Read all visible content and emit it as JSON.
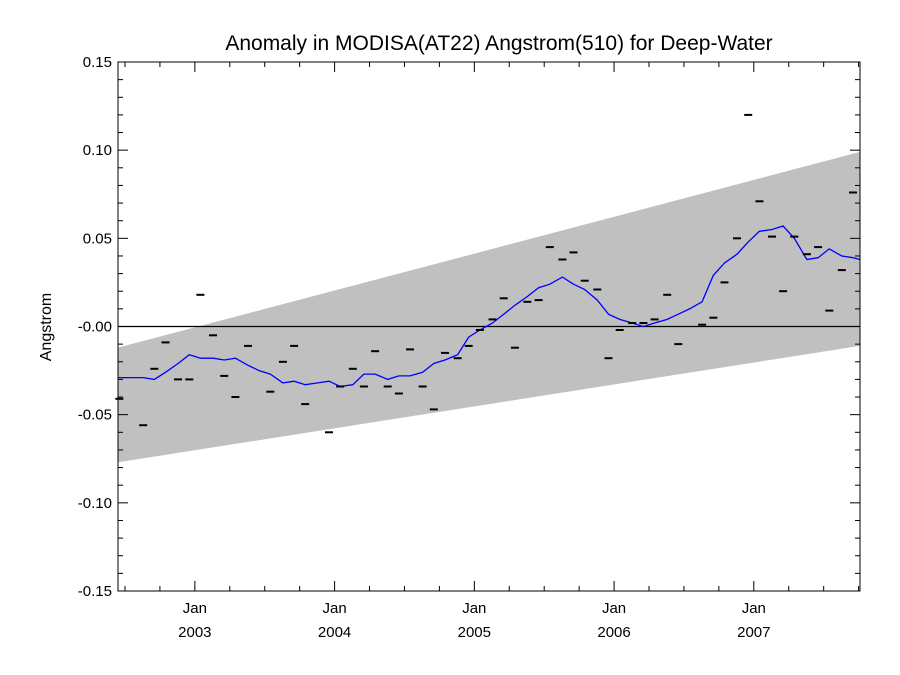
{
  "chart_data": {
    "type": "line",
    "title": "Anomaly in MODISA(AT22) Angstrom(510) for Deep-Water",
    "xlabel": "",
    "ylabel": "Angstrom",
    "xlim": [
      2002.45,
      2007.76
    ],
    "ylim": [
      -0.15,
      0.15
    ],
    "y_ticks": [
      {
        "value": 0.15,
        "label": "0.15"
      },
      {
        "value": 0.1,
        "label": "0.10"
      },
      {
        "value": 0.05,
        "label": "0.05"
      },
      {
        "value": 0.0,
        "label": "-0.00"
      },
      {
        "value": -0.05,
        "label": "-0.05"
      },
      {
        "value": -0.1,
        "label": "-0.10"
      },
      {
        "value": -0.15,
        "label": "-0.15"
      }
    ],
    "x_ticks": [
      {
        "value": 2003.0,
        "month": "Jan",
        "year": "2003"
      },
      {
        "value": 2004.0,
        "month": "Jan",
        "year": "2004"
      },
      {
        "value": 2005.0,
        "month": "Jan",
        "year": "2005"
      },
      {
        "value": 2006.0,
        "month": "Jan",
        "year": "2006"
      },
      {
        "value": 2007.0,
        "month": "Jan",
        "year": "2007"
      }
    ],
    "band": {
      "color": "#c0c0c0",
      "lower": [
        [
          2002.45,
          -0.077
        ],
        [
          2007.76,
          -0.011
        ]
      ],
      "upper": [
        [
          2002.45,
          -0.012
        ],
        [
          2007.76,
          0.099
        ]
      ]
    },
    "zero_line": {
      "y": 0.0,
      "color": "#000000"
    },
    "series": [
      {
        "kind": "monthly-anomaly-markers",
        "color": "#000000",
        "points": [
          [
            2002.46,
            -0.041
          ],
          [
            2002.63,
            -0.056
          ],
          [
            2002.71,
            -0.024
          ],
          [
            2002.79,
            -0.009
          ],
          [
            2002.88,
            -0.03
          ],
          [
            2002.96,
            -0.03
          ],
          [
            2003.04,
            0.018
          ],
          [
            2003.13,
            -0.005
          ],
          [
            2003.21,
            -0.028
          ],
          [
            2003.29,
            -0.04
          ],
          [
            2003.38,
            -0.011
          ],
          [
            2003.54,
            -0.037
          ],
          [
            2003.63,
            -0.02
          ],
          [
            2003.71,
            -0.011
          ],
          [
            2003.79,
            -0.044
          ],
          [
            2003.96,
            -0.06
          ],
          [
            2004.04,
            -0.034
          ],
          [
            2004.13,
            -0.024
          ],
          [
            2004.21,
            -0.034
          ],
          [
            2004.29,
            -0.014
          ],
          [
            2004.38,
            -0.034
          ],
          [
            2004.46,
            -0.038
          ],
          [
            2004.54,
            -0.013
          ],
          [
            2004.63,
            -0.034
          ],
          [
            2004.71,
            -0.047
          ],
          [
            2004.79,
            -0.015
          ],
          [
            2004.88,
            -0.018
          ],
          [
            2004.96,
            -0.011
          ],
          [
            2005.04,
            -0.002
          ],
          [
            2005.13,
            0.004
          ],
          [
            2005.21,
            0.016
          ],
          [
            2005.29,
            -0.012
          ],
          [
            2005.38,
            0.014
          ],
          [
            2005.46,
            0.015
          ],
          [
            2005.54,
            0.045
          ],
          [
            2005.63,
            0.038
          ],
          [
            2005.71,
            0.042
          ],
          [
            2005.79,
            0.026
          ],
          [
            2005.88,
            0.021
          ],
          [
            2005.96,
            -0.018
          ],
          [
            2006.04,
            -0.002
          ],
          [
            2006.13,
            0.002
          ],
          [
            2006.21,
            0.002
          ],
          [
            2006.29,
            0.004
          ],
          [
            2006.38,
            0.018
          ],
          [
            2006.46,
            -0.01
          ],
          [
            2006.63,
            0.001
          ],
          [
            2006.71,
            0.005
          ],
          [
            2006.79,
            0.025
          ],
          [
            2006.88,
            0.05
          ],
          [
            2006.96,
            0.12
          ],
          [
            2007.04,
            0.071
          ],
          [
            2007.13,
            0.051
          ],
          [
            2007.21,
            0.02
          ],
          [
            2007.29,
            0.051
          ],
          [
            2007.38,
            0.041
          ],
          [
            2007.46,
            0.045
          ],
          [
            2007.54,
            0.009
          ],
          [
            2007.63,
            0.032
          ],
          [
            2007.71,
            0.076
          ]
        ]
      },
      {
        "kind": "running-mean",
        "color": "#0000ff",
        "points": [
          [
            2002.45,
            -0.029
          ],
          [
            2002.54,
            -0.029
          ],
          [
            2002.63,
            -0.029
          ],
          [
            2002.71,
            -0.03
          ],
          [
            2002.79,
            -0.026
          ],
          [
            2002.88,
            -0.021
          ],
          [
            2002.96,
            -0.016
          ],
          [
            2003.04,
            -0.018
          ],
          [
            2003.13,
            -0.018
          ],
          [
            2003.21,
            -0.019
          ],
          [
            2003.29,
            -0.018
          ],
          [
            2003.38,
            -0.022
          ],
          [
            2003.46,
            -0.025
          ],
          [
            2003.54,
            -0.027
          ],
          [
            2003.63,
            -0.032
          ],
          [
            2003.71,
            -0.031
          ],
          [
            2003.79,
            -0.033
          ],
          [
            2003.88,
            -0.032
          ],
          [
            2003.96,
            -0.031
          ],
          [
            2004.04,
            -0.034
          ],
          [
            2004.13,
            -0.033
          ],
          [
            2004.21,
            -0.027
          ],
          [
            2004.29,
            -0.027
          ],
          [
            2004.38,
            -0.03
          ],
          [
            2004.46,
            -0.028
          ],
          [
            2004.54,
            -0.028
          ],
          [
            2004.63,
            -0.026
          ],
          [
            2004.71,
            -0.021
          ],
          [
            2004.79,
            -0.019
          ],
          [
            2004.88,
            -0.016
          ],
          [
            2004.96,
            -0.006
          ],
          [
            2005.04,
            -0.002
          ],
          [
            2005.13,
            0.002
          ],
          [
            2005.21,
            0.007
          ],
          [
            2005.29,
            0.012
          ],
          [
            2005.38,
            0.017
          ],
          [
            2005.46,
            0.022
          ],
          [
            2005.54,
            0.024
          ],
          [
            2005.63,
            0.028
          ],
          [
            2005.71,
            0.024
          ],
          [
            2005.79,
            0.021
          ],
          [
            2005.88,
            0.015
          ],
          [
            2005.96,
            0.007
          ],
          [
            2006.04,
            0.004
          ],
          [
            2006.13,
            0.002
          ],
          [
            2006.21,
            0.0
          ],
          [
            2006.29,
            0.002
          ],
          [
            2006.38,
            0.004
          ],
          [
            2006.46,
            0.007
          ],
          [
            2006.54,
            0.01
          ],
          [
            2006.63,
            0.014
          ],
          [
            2006.71,
            0.029
          ],
          [
            2006.79,
            0.036
          ],
          [
            2006.88,
            0.041
          ],
          [
            2006.96,
            0.048
          ],
          [
            2007.04,
            0.054
          ],
          [
            2007.13,
            0.055
          ],
          [
            2007.21,
            0.057
          ],
          [
            2007.29,
            0.05
          ],
          [
            2007.38,
            0.038
          ],
          [
            2007.46,
            0.039
          ],
          [
            2007.54,
            0.044
          ],
          [
            2007.63,
            0.04
          ],
          [
            2007.71,
            0.039
          ],
          [
            2007.76,
            0.038
          ]
        ]
      }
    ]
  }
}
